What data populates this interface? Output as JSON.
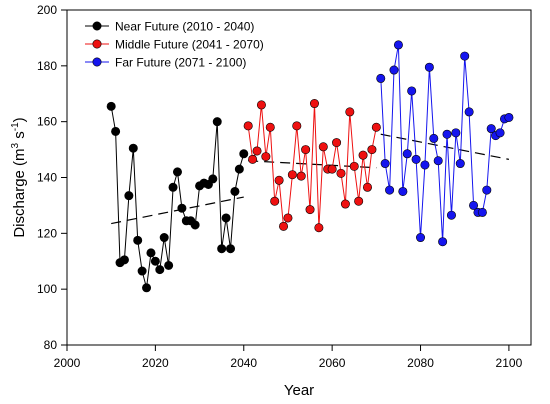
{
  "chart_data": {
    "type": "line",
    "xlabel": "Year",
    "ylabel": "Discharge (m³ s⁻¹)",
    "ylabel_parts": {
      "base": "Discharge (m",
      "sup1": "3",
      "mid": " s",
      "sup2": "-1",
      "end": ")"
    },
    "xlim": [
      2000,
      2105
    ],
    "ylim": [
      80,
      200
    ],
    "xticks": [
      2000,
      2020,
      2040,
      2060,
      2080,
      2100
    ],
    "yticks": [
      80,
      100,
      120,
      140,
      160,
      180,
      200
    ],
    "legend_position": "top-left",
    "grid": false,
    "series": [
      {
        "name": "Near Future (2010 - 2040)",
        "color": "#000000",
        "x": [
          2010,
          2011,
          2012,
          2013,
          2014,
          2015,
          2016,
          2017,
          2018,
          2019,
          2020,
          2021,
          2022,
          2023,
          2024,
          2025,
          2026,
          2027,
          2028,
          2029,
          2030,
          2031,
          2032,
          2033,
          2034,
          2035,
          2036,
          2037,
          2038,
          2039,
          2040
        ],
        "values": [
          165.5,
          156.5,
          109.5,
          110.5,
          133.5,
          150.5,
          117.5,
          106.5,
          100.5,
          113.0,
          110.0,
          107.0,
          118.5,
          108.5,
          136.5,
          142.0,
          129.0,
          124.5,
          124.5,
          123.0,
          137.0,
          138.0,
          137.5,
          139.5,
          160.0,
          114.5,
          125.5,
          114.5,
          135.0,
          143.0,
          148.5
        ],
        "trend": [
          123.5,
          133.0
        ]
      },
      {
        "name": "Middle Future (2041 - 2070)",
        "color": "#ee1111",
        "x": [
          2041,
          2042,
          2043,
          2044,
          2045,
          2046,
          2047,
          2048,
          2049,
          2050,
          2051,
          2052,
          2053,
          2054,
          2055,
          2056,
          2057,
          2058,
          2059,
          2060,
          2061,
          2062,
          2063,
          2064,
          2065,
          2066,
          2067,
          2068,
          2069,
          2070
        ],
        "values": [
          158.5,
          146.5,
          149.5,
          166.0,
          147.5,
          158.0,
          131.5,
          139.0,
          122.5,
          125.5,
          141.0,
          158.5,
          140.5,
          150.0,
          128.5,
          166.5,
          122.0,
          151.0,
          143.0,
          143.0,
          152.5,
          141.5,
          130.5,
          163.5,
          144.0,
          131.5,
          148.0,
          136.5,
          150.0,
          158.0
        ],
        "trend": [
          146.0,
          143.5
        ]
      },
      {
        "name": "Far Future (2071 - 2100)",
        "color": "#1515ee",
        "x": [
          2071,
          2072,
          2073,
          2074,
          2075,
          2076,
          2077,
          2078,
          2079,
          2080,
          2081,
          2082,
          2083,
          2084,
          2085,
          2086,
          2087,
          2088,
          2089,
          2090,
          2091,
          2092,
          2093,
          2094,
          2095,
          2096,
          2097,
          2098,
          2099,
          2100
        ],
        "values": [
          175.5,
          145.0,
          135.5,
          178.5,
          187.5,
          135.0,
          148.5,
          171.0,
          146.5,
          118.5,
          144.5,
          179.5,
          154.0,
          146.0,
          117.0,
          155.5,
          126.5,
          156.0,
          145.0,
          183.5,
          163.5,
          130.0,
          127.5,
          127.5,
          135.5,
          157.5,
          155.0,
          156.0,
          161.0,
          161.5
        ],
        "trend": [
          155.5,
          146.5
        ]
      }
    ]
  }
}
